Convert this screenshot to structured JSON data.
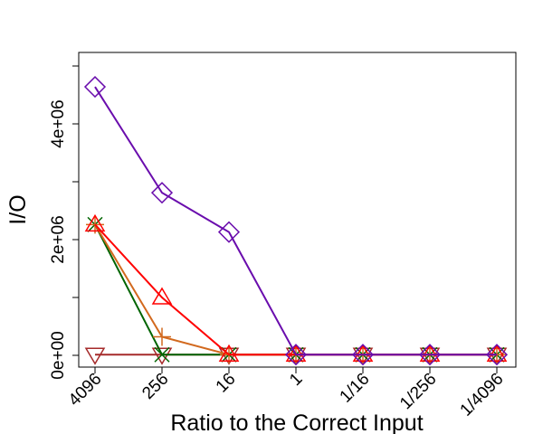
{
  "chart_data": {
    "type": "line",
    "title": "",
    "xlabel": "Ratio to the Correct Input",
    "ylabel": "I/O",
    "categories": [
      "4096",
      "256",
      "16",
      "1",
      "1/16",
      "1/256",
      "1/4096"
    ],
    "y_ticks": [
      {
        "value": 0,
        "label": "0e+00"
      },
      {
        "value": 2000000,
        "label": "2e+06"
      },
      {
        "value": 4000000,
        "label": "4e+06"
      }
    ],
    "y_minor_ticks": [
      1000000,
      3000000,
      5000000
    ],
    "ylim": [
      -100000,
      5200000
    ],
    "grid": false,
    "legend": "none",
    "series": [
      {
        "color": "#6a0dad",
        "marker": "diamond",
        "values": [
          4640000,
          2810000,
          2130000,
          12000,
          12000,
          12000,
          12000
        ]
      },
      {
        "color": "#ff0000",
        "marker": "triangle-up",
        "values": [
          2260000,
          1000000,
          12000,
          12000,
          12000,
          12000,
          12000
        ]
      },
      {
        "color": "#d2691e",
        "marker": "plus",
        "values": [
          2260000,
          320000,
          12000,
          12000,
          12000,
          12000,
          12000
        ]
      },
      {
        "color": "#006400",
        "marker": "x",
        "values": [
          2260000,
          12000,
          12000,
          12000,
          12000,
          12000,
          12000
        ]
      },
      {
        "color": "#a52a2a",
        "marker": "triangle-down",
        "values": [
          12000,
          12000,
          12000,
          12000,
          12000,
          12000,
          12000
        ]
      }
    ]
  }
}
